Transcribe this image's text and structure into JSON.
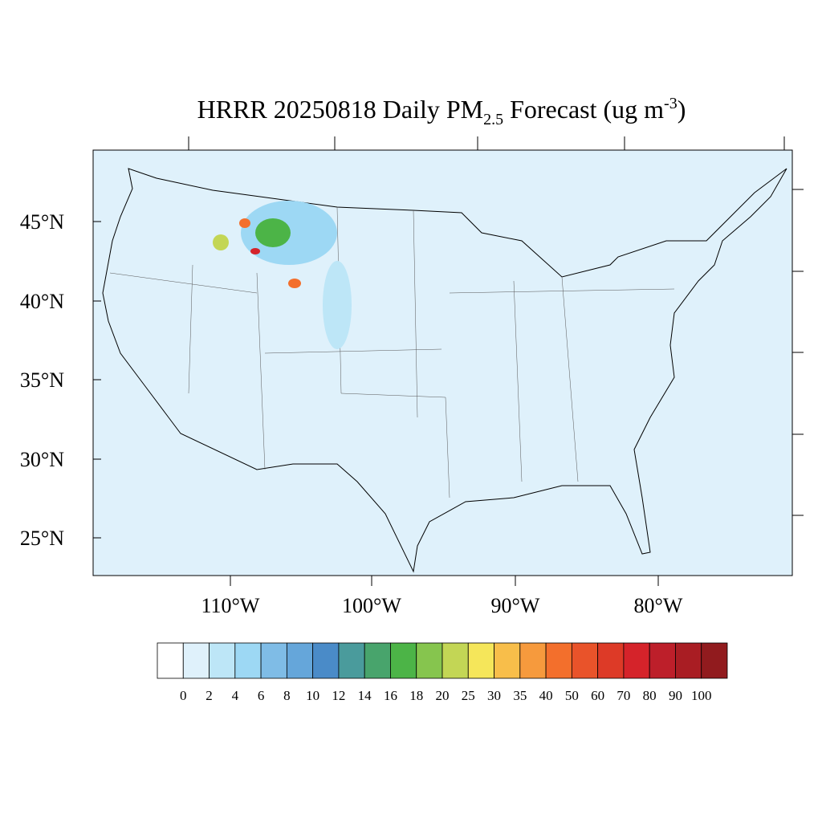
{
  "title": {
    "main": "HRRR 20250818 Daily PM",
    "sub": "2.5",
    "rest": " Forecast (ug m",
    "sup": "-3",
    "end": ")"
  },
  "lat_labels": [
    "45°N",
    "40°N",
    "35°N",
    "30°N",
    "25°N"
  ],
  "lon_labels": [
    "110°W",
    "100°W",
    "90°W",
    "80°W"
  ],
  "colorbar": {
    "levels": [
      0,
      2,
      4,
      6,
      8,
      10,
      12,
      14,
      16,
      18,
      20,
      25,
      30,
      35,
      40,
      50,
      60,
      70,
      80,
      90,
      100
    ],
    "colors": [
      "#ffffff",
      "#dff1fb",
      "#bde6f7",
      "#9dd8f4",
      "#7fbce6",
      "#65a6da",
      "#4a8bc8",
      "#4a9b9c",
      "#48a46c",
      "#4cb447",
      "#86c54e",
      "#c3d655",
      "#f5e65a",
      "#f8be4a",
      "#f69a3d",
      "#f36f2c",
      "#e9532a",
      "#dd3a27",
      "#d5232a",
      "#bd1f2a",
      "#a91d23",
      "#911b1e"
    ]
  }
}
